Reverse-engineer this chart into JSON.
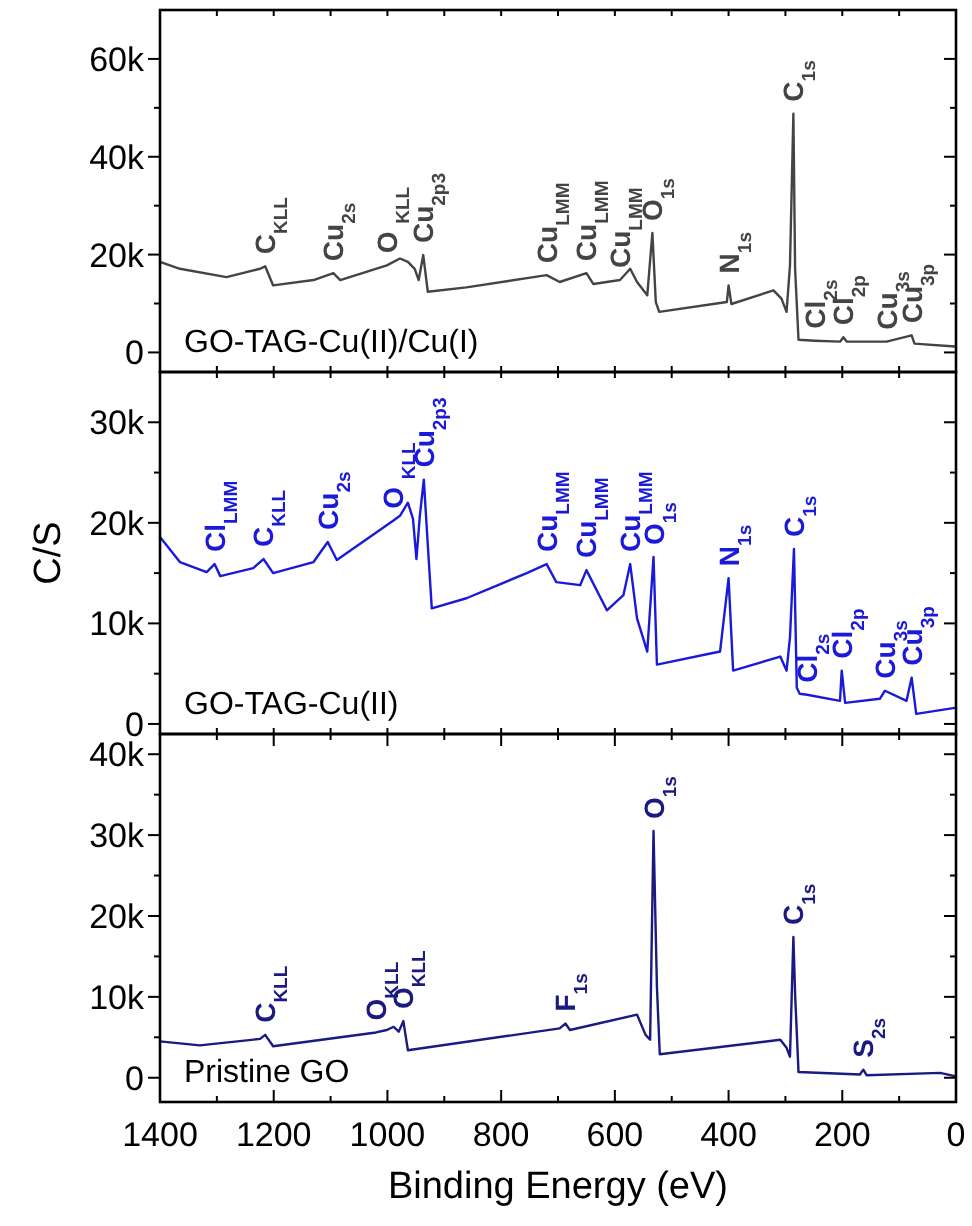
{
  "chart_data": [
    {
      "type": "line",
      "tick_labels": "y",
      "xlim": [
        1400,
        0
      ],
      "xticks": [
        {
          "value": 1400,
          "label": null
        },
        {
          "value": 1300,
          "label": null
        },
        {
          "value": 1200,
          "label": null
        },
        {
          "value": 1100,
          "label": null
        },
        {
          "value": 1000,
          "label": null
        },
        {
          "value": 900,
          "label": null
        },
        {
          "value": 800,
          "label": null
        },
        {
          "value": 700,
          "label": null
        },
        {
          "value": 600,
          "label": null
        },
        {
          "value": 500,
          "label": null
        },
        {
          "value": 400,
          "label": null
        },
        {
          "value": 300,
          "label": null
        },
        {
          "value": 200,
          "label": null
        },
        {
          "value": 100,
          "label": null
        },
        {
          "value": 0,
          "label": null
        }
      ],
      "ylim": [
        -4000,
        70000
      ],
      "yticks": [
        {
          "value": 0,
          "label": "0"
        },
        {
          "value": 10000,
          "label": null
        },
        {
          "value": 20000,
          "label": "20k"
        },
        {
          "value": 30000,
          "label": null
        },
        {
          "value": 40000,
          "label": "40k"
        },
        {
          "value": 50000,
          "label": null
        },
        {
          "value": 60000,
          "label": "60k"
        }
      ],
      "series": [
        {
          "name": "GO-TAG-Cu(II)/Cu(I)",
          "color": "#444444",
          "x": [
            1400,
            1365,
            1283,
            1224,
            1215,
            1201,
            1130,
            1095,
            1083,
            1001,
            978,
            964,
            952,
            945,
            937,
            929,
            861,
            743,
            720,
            697,
            650,
            638,
            591,
            573,
            561,
            543,
            534,
            528,
            522,
            403,
            400,
            395,
            321,
            307,
            298,
            292,
            286,
            283,
            277,
            248,
            204,
            198,
            192,
            122,
            78,
            73,
            2
          ],
          "values": [
            18500,
            17100,
            15400,
            17100,
            17600,
            13700,
            14800,
            16200,
            14800,
            17800,
            19200,
            18500,
            17100,
            14800,
            19900,
            12400,
            13300,
            15400,
            15800,
            14400,
            16200,
            14000,
            14800,
            17100,
            14400,
            11700,
            24400,
            10300,
            8300,
            10300,
            13700,
            9900,
            12700,
            11000,
            8300,
            17800,
            48800,
            17100,
            2600,
            2400,
            2200,
            3100,
            2200,
            2200,
            3500,
            1800,
            1200
          ]
        }
      ],
      "annotations": [
        {
          "text": "C$_{KLL}$",
          "x": 1215,
          "y": 17600
        },
        {
          "text": "Cu$_{2s}$",
          "x": 1095,
          "y": 16200
        },
        {
          "text": "O $_{KLL}$",
          "x": 1001,
          "y": 17800
        },
        {
          "text": "Cu$_{2p3}$",
          "x": 937,
          "y": 19900
        },
        {
          "text": "Cu$_{LMM}$",
          "x": 720,
          "y": 15800
        },
        {
          "text": "Cu$_{LMM}$",
          "x": 650,
          "y": 16200
        },
        {
          "text": "Cu$_{LMM}$",
          "x": 591,
          "y": 14800
        },
        {
          "text": "O$_{1s}$",
          "x": 534,
          "y": 24400
        },
        {
          "text": "N$_{1s}$",
          "x": 400,
          "y": 13700
        },
        {
          "text": "C$_{1s}$",
          "x": 286,
          "y": 48800
        },
        {
          "text": "Cl$_{2s}$",
          "x": 248,
          "y": 2400
        },
        {
          "text": "Cl$_{2p}$",
          "x": 198,
          "y": 3100
        },
        {
          "text": "Cu$_{3s}$",
          "x": 122,
          "y": 2200
        },
        {
          "text": "Cu$_{3p}$",
          "x": 78,
          "y": 3500
        }
      ]
    },
    {
      "type": "line",
      "tick_labels": "y",
      "ylabel": "C/S",
      "xlim": [
        1400,
        0
      ],
      "xticks": [
        {
          "value": 1400,
          "label": null
        },
        {
          "value": 1300,
          "label": null
        },
        {
          "value": 1200,
          "label": null
        },
        {
          "value": 1100,
          "label": null
        },
        {
          "value": 1000,
          "label": null
        },
        {
          "value": 900,
          "label": null
        },
        {
          "value": 800,
          "label": null
        },
        {
          "value": 700,
          "label": null
        },
        {
          "value": 600,
          "label": null
        },
        {
          "value": 500,
          "label": null
        },
        {
          "value": 400,
          "label": null
        },
        {
          "value": 300,
          "label": null
        },
        {
          "value": 200,
          "label": null
        },
        {
          "value": 100,
          "label": null
        },
        {
          "value": 0,
          "label": null
        }
      ],
      "ylim": [
        -1000,
        35000
      ],
      "yticks": [
        {
          "value": 0,
          "label": "0"
        },
        {
          "value": 5000,
          "label": null
        },
        {
          "value": 10000,
          "label": "10k"
        },
        {
          "value": 15000,
          "label": null
        },
        {
          "value": 20000,
          "label": "20k"
        },
        {
          "value": 25000,
          "label": null
        },
        {
          "value": 30000,
          "label": "30k"
        }
      ],
      "series": [
        {
          "name": "GO-TAG-Cu(II)",
          "color": "#1a1ad8",
          "x": [
            1400,
            1365,
            1318,
            1304,
            1294,
            1236,
            1218,
            1201,
            1130,
            1105,
            1089,
            990,
            978,
            964,
            955,
            949,
            943,
            936,
            929,
            922,
            861,
            755,
            720,
            703,
            661,
            650,
            614,
            585,
            573,
            561,
            543,
            532,
            526,
            415,
            400,
            392,
            309,
            298,
            292,
            285,
            280,
            275,
            262,
            204,
            201,
            195,
            134,
            125,
            87,
            78,
            70,
            2
          ],
          "values": [
            18600,
            16100,
            15100,
            15900,
            14700,
            15500,
            16400,
            15000,
            16100,
            18100,
            16300,
            20200,
            20700,
            22000,
            20400,
            16400,
            20700,
            24300,
            17800,
            11500,
            12500,
            15000,
            15900,
            14100,
            13800,
            15300,
            11300,
            12800,
            15900,
            10500,
            7200,
            16600,
            5900,
            7200,
            14500,
            5300,
            6700,
            5300,
            8600,
            17400,
            3600,
            3000,
            2900,
            2300,
            5300,
            2100,
            2500,
            3300,
            2300,
            4600,
            1000,
            1600
          ]
        }
      ],
      "annotations": [
        {
          "text": "Cl$_{LMM}$",
          "x": 1304,
          "y": 15900
        },
        {
          "text": "C$_{KLL}$",
          "x": 1218,
          "y": 16400
        },
        {
          "text": "Cu$_{2s}$",
          "x": 1105,
          "y": 18100
        },
        {
          "text": "O $_{KLL}$",
          "x": 990,
          "y": 20200
        },
        {
          "text": "Cu$_{2p3}$",
          "x": 936,
          "y": 24300
        },
        {
          "text": "Cu$_{LMM}$",
          "x": 720,
          "y": 15900
        },
        {
          "text": "Cu$_{LMM}$",
          "x": 650,
          "y": 15300
        },
        {
          "text": "Cu$_{LMM}$",
          "x": 573,
          "y": 15900
        },
        {
          "text": "O$_{1s}$",
          "x": 532,
          "y": 16600
        },
        {
          "text": "N$_{1s}$",
          "x": 400,
          "y": 14500
        },
        {
          "text": "C$_{1s}$",
          "x": 285,
          "y": 17400
        },
        {
          "text": "Cl$_{2s}$",
          "x": 262,
          "y": 2900
        },
        {
          "text": "Cl$_{2p}$",
          "x": 201,
          "y": 5300
        },
        {
          "text": "Cu$_{3s}$",
          "x": 125,
          "y": 3300
        },
        {
          "text": "Cu$_{3p}$",
          "x": 78,
          "y": 4600
        }
      ]
    },
    {
      "type": "line",
      "xlabel": "Binding Energy (eV)",
      "xlim": [
        1400,
        0
      ],
      "xticks": [
        1400,
        {
          "value": 1300,
          "label": null
        },
        1200,
        {
          "value": 1100,
          "label": null
        },
        1000,
        {
          "value": 900,
          "label": null
        },
        800,
        {
          "value": 700,
          "label": null
        },
        600,
        {
          "value": 500,
          "label": null
        },
        400,
        {
          "value": 300,
          "label": null
        },
        200,
        {
          "value": 100,
          "label": null
        },
        0
      ],
      "ylim": [
        -3000,
        42500
      ],
      "yticks": [
        {
          "value": 0,
          "label": "0"
        },
        {
          "value": 5000,
          "label": null
        },
        {
          "value": 10000,
          "label": "10k"
        },
        {
          "value": 15000,
          "label": null
        },
        {
          "value": 20000,
          "label": "20k"
        },
        {
          "value": 25000,
          "label": null
        },
        {
          "value": 30000,
          "label": "30k"
        },
        {
          "value": 35000,
          "label": null
        },
        {
          "value": 40000,
          "label": "40k"
        }
      ],
      "series": [
        {
          "name": "Pristine GO",
          "color": "#1a1a80",
          "x": [
            1400,
            1330,
            1224,
            1215,
            1201,
            1020,
            1001,
            989,
            980,
            972,
            964,
            697,
            687,
            679,
            561,
            546,
            538,
            532,
            526,
            521,
            309,
            298,
            292,
            286,
            283,
            277,
            169,
            163,
            157,
            28,
            2
          ],
          "values": [
            4500,
            4000,
            4800,
            5300,
            3900,
            5600,
            5900,
            6300,
            5700,
            7000,
            3400,
            6100,
            6700,
            5900,
            7800,
            5300,
            4700,
            30500,
            11200,
            2900,
            4700,
            3700,
            2600,
            17400,
            10400,
            700,
            400,
            1000,
            300,
            600,
            200
          ]
        }
      ],
      "annotations": [
        {
          "text": "C$_{KLL}$",
          "x": 1215,
          "y": 5300
        },
        {
          "text": "O$_{KLL}$",
          "x": 1020,
          "y": 5600
        },
        {
          "text": "O$_{KLL}$",
          "x": 972,
          "y": 7000
        },
        {
          "text": "F$_{1s}$",
          "x": 687,
          "y": 6700
        },
        {
          "text": "O$_{1s}$",
          "x": 532,
          "y": 30500
        },
        {
          "text": "C$_{1s}$",
          "x": 286,
          "y": 17400
        },
        {
          "text": "S$_{2s}$",
          "x": 163,
          "y": 1000
        }
      ]
    }
  ]
}
